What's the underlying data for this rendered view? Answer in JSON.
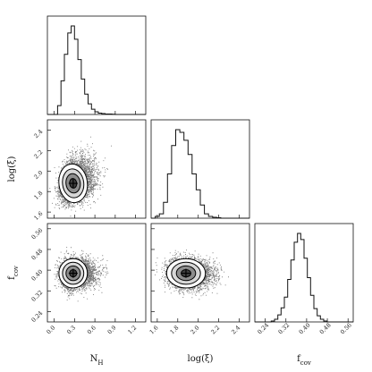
{
  "chart_data": {
    "type": "corner",
    "parameters": [
      {
        "key": "nh",
        "label": "N",
        "label_sub": "H",
        "range": [
          -0.1,
          1.35
        ],
        "ticks": [
          0.0,
          0.3,
          0.6,
          0.9,
          1.2
        ],
        "tick_labels": [
          "0.0",
          "0.3",
          "0.6",
          "0.9",
          "1.2"
        ],
        "mean": 0.28,
        "sd": 0.1,
        "skew": 0.9
      },
      {
        "key": "logxi",
        "label": "log(ξ)",
        "label_sub": "",
        "range": [
          1.54,
          2.5
        ],
        "ticks": [
          1.6,
          1.8,
          2.0,
          2.2,
          2.4
        ],
        "tick_labels": [
          "1.6",
          "1.8",
          "2.0",
          "2.2",
          "2.4"
        ],
        "mean": 1.88,
        "sd": 0.09,
        "skew": 0.6
      },
      {
        "key": "fcov",
        "label": "f",
        "label_sub": "cov",
        "range": [
          0.2,
          0.58
        ],
        "ticks": [
          0.24,
          0.32,
          0.4,
          0.48,
          0.56
        ],
        "tick_labels": [
          "0.24",
          "0.32",
          "0.40",
          "0.48",
          "0.56"
        ],
        "mean": 0.388,
        "sd": 0.027,
        "skew": 0.0
      }
    ],
    "histograms": [
      {
        "param": "nh",
        "bins": [
          -0.1,
          -0.05,
          0.0,
          0.05,
          0.1,
          0.15,
          0.2,
          0.25,
          0.3,
          0.35,
          0.4,
          0.45,
          0.5,
          0.55,
          0.6,
          0.65,
          0.7,
          0.75,
          0.8,
          0.85,
          0.9,
          0.95,
          1.0,
          1.05,
          1.1,
          1.15,
          1.2,
          1.25,
          1.3,
          1.35
        ],
        "counts": [
          0,
          0,
          0,
          10,
          38,
          68,
          92,
          100,
          85,
          62,
          40,
          23,
          12,
          6,
          3,
          1.5,
          1,
          0.5,
          0.5,
          0.3,
          0,
          0,
          0,
          0,
          0,
          0,
          0,
          0,
          0
        ]
      },
      {
        "param": "logxi",
        "bins": [
          1.54,
          1.58,
          1.62,
          1.66,
          1.7,
          1.74,
          1.78,
          1.82,
          1.86,
          1.9,
          1.94,
          1.98,
          2.02,
          2.06,
          2.1,
          2.14,
          2.18,
          2.22,
          2.26,
          2.3,
          2.34,
          2.38,
          2.42,
          2.46,
          2.5
        ],
        "counts": [
          0,
          2,
          5,
          18,
          50,
          82,
          100,
          97,
          88,
          72,
          50,
          32,
          15,
          5,
          2,
          1,
          0.5,
          0,
          0,
          0,
          0,
          0,
          0,
          0
        ]
      },
      {
        "param": "fcov",
        "bins": [
          0.2,
          0.2127,
          0.2253,
          0.238,
          0.2507,
          0.2633,
          0.276,
          0.2887,
          0.3013,
          0.314,
          0.3267,
          0.3393,
          0.352,
          0.3647,
          0.3773,
          0.39,
          0.4027,
          0.4153,
          0.428,
          0.4407,
          0.4533,
          0.466,
          0.4787,
          0.4913,
          0.504,
          0.5167,
          0.5293,
          0.542,
          0.5547,
          0.5673,
          0.58
        ],
        "counts": [
          0,
          0,
          0,
          0,
          0,
          1,
          3,
          8,
          16,
          28,
          48,
          70,
          90,
          100,
          93,
          72,
          50,
          30,
          15,
          7,
          3,
          1,
          0,
          0,
          0,
          0,
          0,
          0,
          0,
          0
        ]
      }
    ],
    "correlations": {
      "nh_logxi": 0.25,
      "nh_fcov": 0.05,
      "logxi_fcov": -0.05
    },
    "contour_levels": [
      0.5,
      1.0,
      1.5,
      2.0
    ],
    "colors": {
      "points": "#000000",
      "contour_fill_outer": "#ffffff",
      "contour_fill_mid": "#d0d0d0",
      "contour_fill_inner": "#808080",
      "contour_fill_core": "#303030"
    }
  }
}
